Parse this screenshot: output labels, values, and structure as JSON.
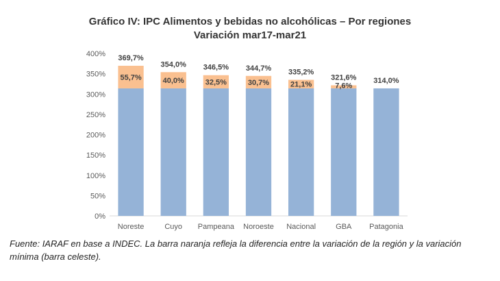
{
  "chart_data": {
    "type": "bar",
    "stacked": true,
    "title": "Gráfico IV: IPC Alimentos y bebidas no alcohólicas – Por regiones",
    "subtitle": "Variación mar17-mar21",
    "categories": [
      "Noreste",
      "Cuyo",
      "Pampeana",
      "Noroeste",
      "Nacional",
      "GBA",
      "Patagonia"
    ],
    "series": [
      {
        "values": [
          314.0,
          314.0,
          314.0,
          314.0,
          314.0,
          314.0,
          314.0
        ],
        "color": "#95b3d7"
      },
      {
        "values": [
          55.7,
          40.0,
          32.5,
          30.7,
          21.1,
          7.6,
          0
        ],
        "color": "#fac090"
      }
    ],
    "totals": [
      369.7,
      354.0,
      346.5,
      344.7,
      335.2,
      321.6,
      314.0
    ],
    "total_labels": [
      "369,7%",
      "354,0%",
      "346,5%",
      "344,7%",
      "335,2%",
      "321,6%",
      "314,0%"
    ],
    "diff_labels": [
      "55,7%",
      "40,0%",
      "32,5%",
      "30,7%",
      "21,1%",
      "7,6%",
      ""
    ],
    "ylim": [
      0,
      400
    ],
    "yticks": [
      0,
      50,
      100,
      150,
      200,
      250,
      300,
      350,
      400
    ],
    "ytick_labels": [
      "0%",
      "50%",
      "100%",
      "150%",
      "200%",
      "250%",
      "300%",
      "350%",
      "400%"
    ],
    "grid": false,
    "legend": "none"
  },
  "footnote": "Fuente: IARAF en base a INDEC. La barra naranja refleja la diferencia entre la variación de la región y la variación mínima (barra celeste)."
}
